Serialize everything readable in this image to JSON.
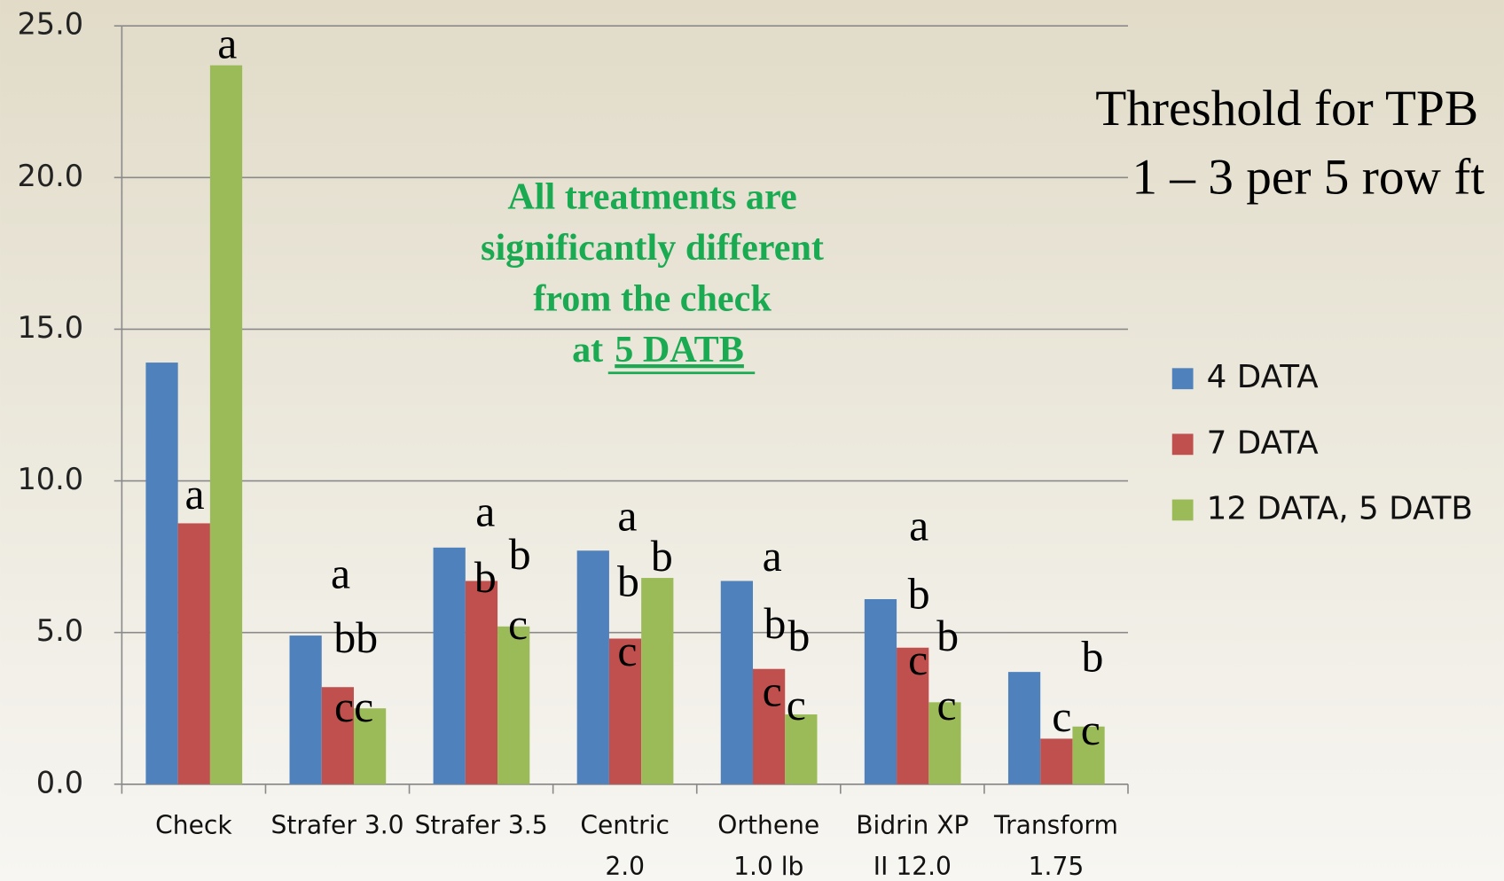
{
  "chart_data": {
    "type": "bar",
    "categories": [
      [
        "Check"
      ],
      [
        "Strafer 3.0"
      ],
      [
        "Strafer 3.5"
      ],
      [
        "Centric",
        "2.0"
      ],
      [
        "Orthene",
        "1.0 lb"
      ],
      [
        "Bidrin XP",
        "II 12.0"
      ],
      [
        "Transform",
        "1.75"
      ]
    ],
    "series": [
      {
        "name": "4 DATA",
        "color": "#4f81bd",
        "values": [
          13.9,
          4.9,
          7.8,
          7.7,
          6.7,
          6.1,
          3.7
        ]
      },
      {
        "name": "7 DATA",
        "color": "#c0504d",
        "values": [
          8.6,
          3.2,
          6.7,
          4.8,
          3.8,
          4.5,
          1.5
        ]
      },
      {
        "name": "12 DATA, 5 DATB",
        "color": "#9bbb59",
        "values": [
          23.7,
          2.5,
          5.2,
          6.8,
          2.3,
          2.7,
          1.9
        ]
      }
    ],
    "ylim": [
      0,
      25
    ],
    "yticks": [
      {
        "value": 0,
        "label": "0.0"
      },
      {
        "value": 5,
        "label": "5.0"
      },
      {
        "value": 10,
        "label": "10.0"
      },
      {
        "value": 15,
        "label": "15.0"
      },
      {
        "value": 20,
        "label": "20.0"
      },
      {
        "value": 25,
        "label": "25.0"
      }
    ],
    "grid": true,
    "legend": "right",
    "significance_letters": [
      [
        "a",
        "a"
      ],
      [
        "a",
        "bb",
        "cc"
      ],
      [
        "a",
        "b",
        "b",
        "c"
      ],
      [
        "a",
        "b",
        "b",
        "c"
      ],
      [
        "a",
        "b",
        "b",
        "c",
        "c"
      ],
      [
        "a",
        "b",
        "b",
        "c",
        "c"
      ],
      [
        "b",
        "c",
        "c"
      ]
    ],
    "note": {
      "lines": [
        "All treatments are",
        "significantly different",
        "from the check"
      ],
      "last_prefix": "at",
      "last_underlined": "5 DATB"
    },
    "threshold_text": [
      "Threshold for TPB",
      "1 – 3 per 5 row ft"
    ]
  }
}
